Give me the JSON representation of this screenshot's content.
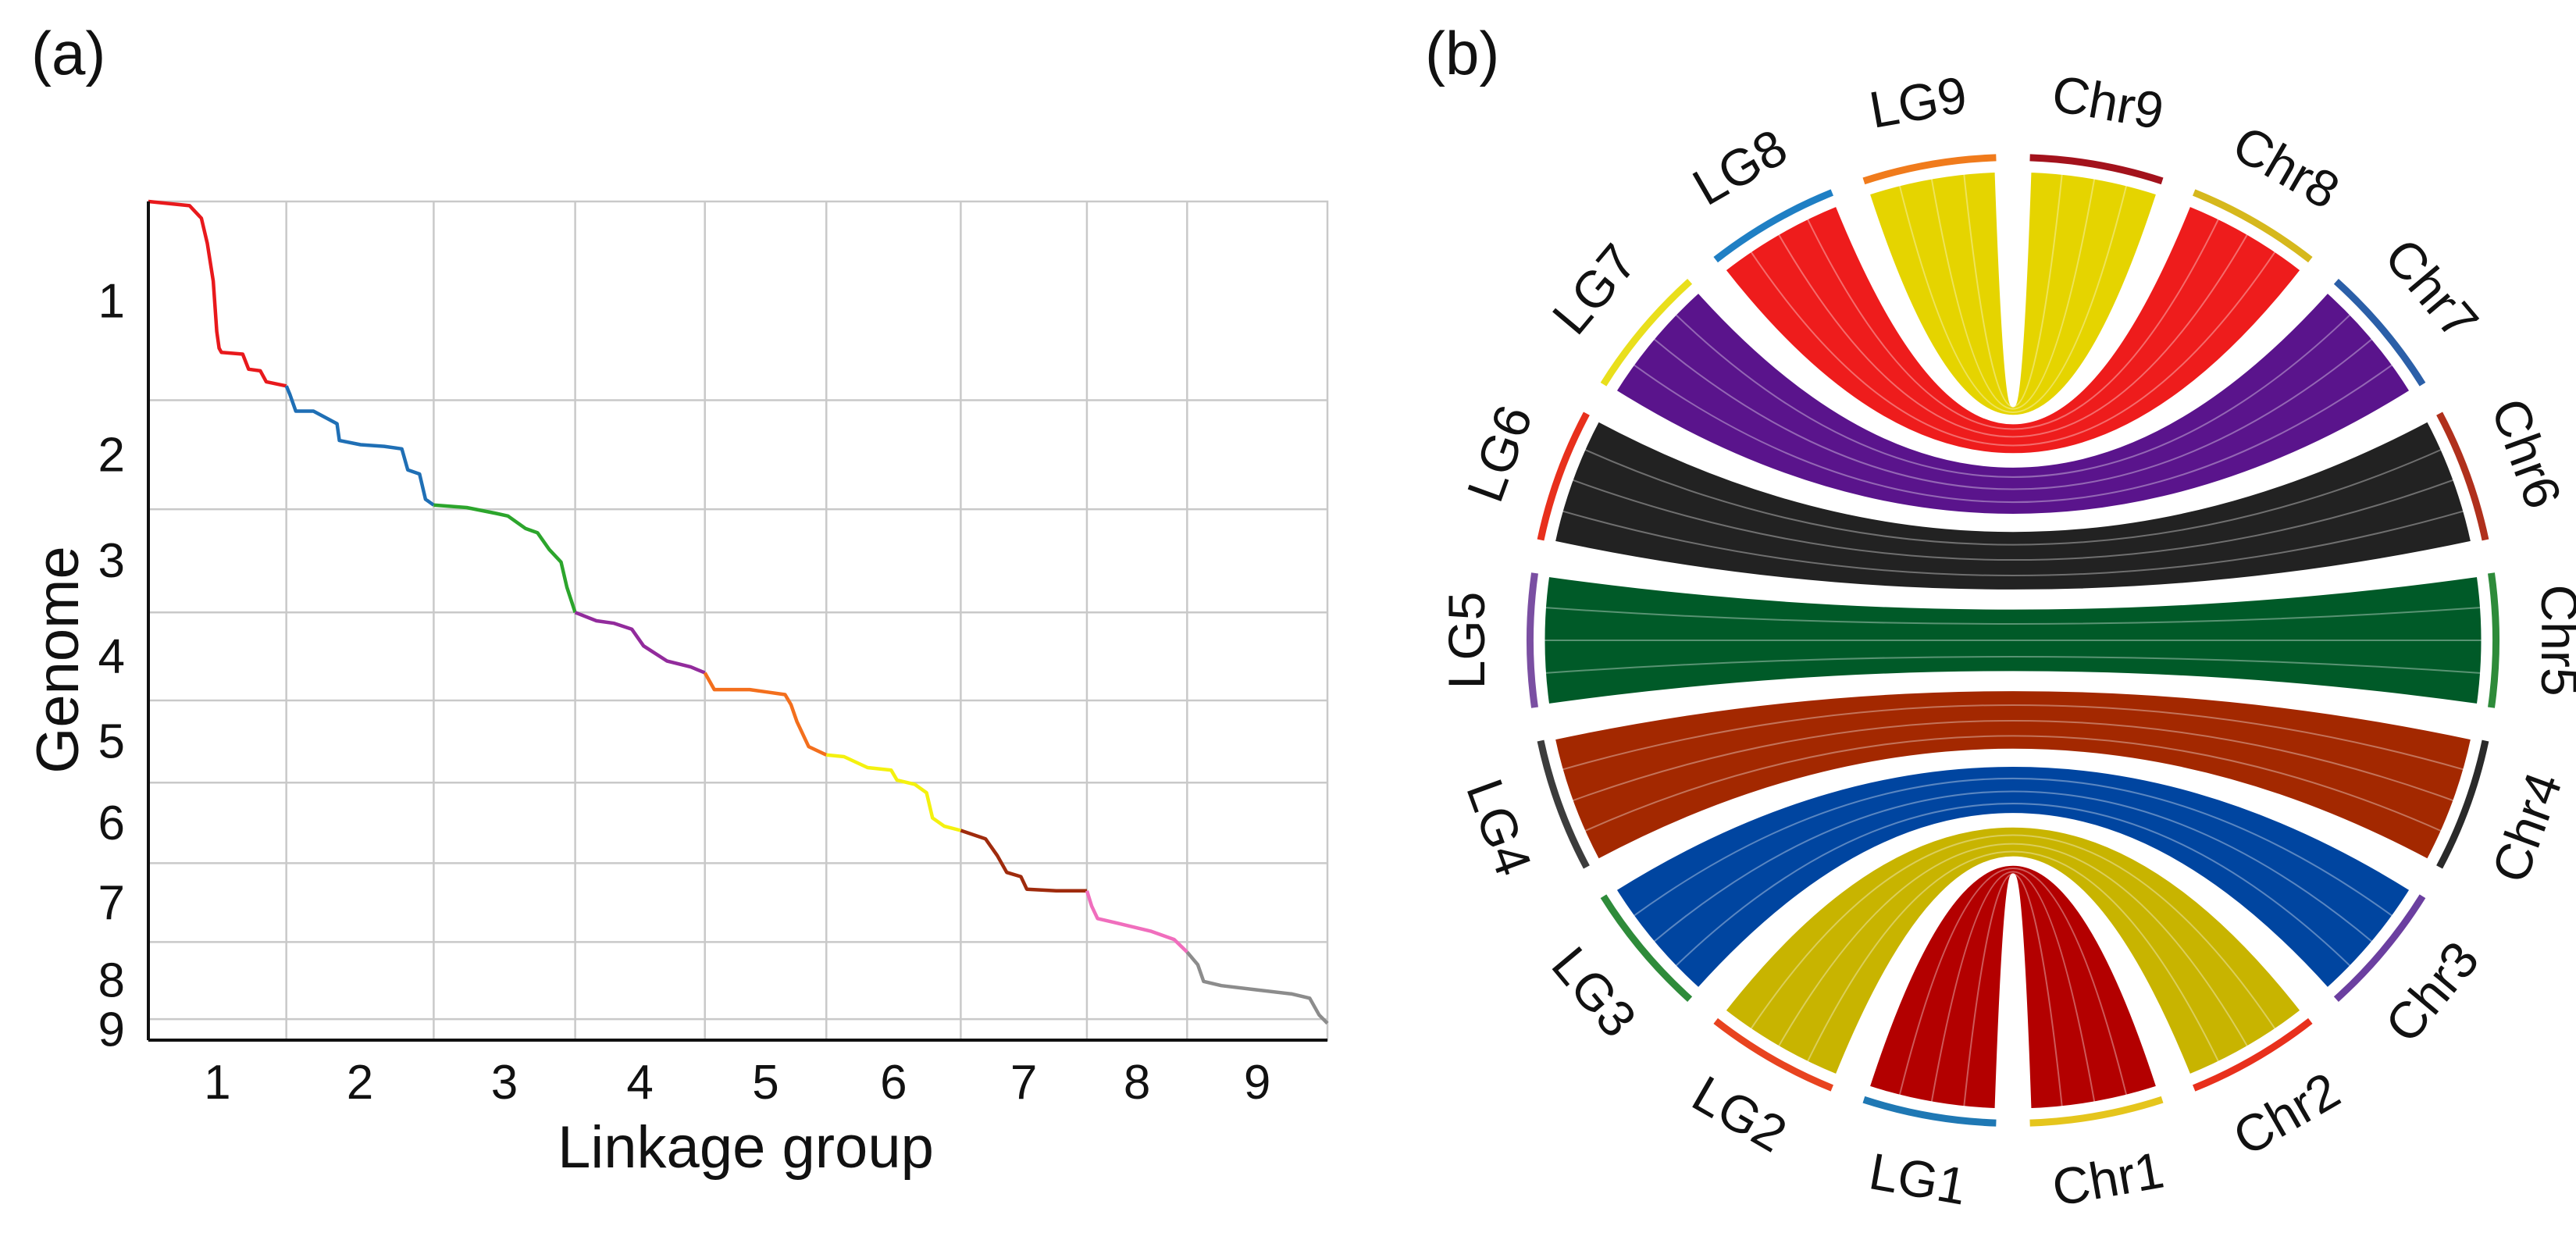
{
  "panel_a_label": "(a)",
  "panel_b_label": "(b)",
  "chart_data": [
    {
      "type": "line",
      "panel": "(a)",
      "title": "",
      "xlabel": "Linkage group",
      "ylabel": "Genome",
      "x_ticks": [
        "1",
        "2",
        "3",
        "4",
        "5",
        "6",
        "7",
        "8",
        "9"
      ],
      "y_ticks": [
        "1",
        "2",
        "3",
        "4",
        "5",
        "6",
        "7",
        "8",
        "9"
      ],
      "y_direction": "top-to-bottom",
      "grid": true,
      "x_boundaries": [
        0,
        1.17,
        2.42,
        3.62,
        4.72,
        5.75,
        6.89,
        7.96,
        8.81,
        10.0
      ],
      "y_boundaries": [
        0,
        2.37,
        3.67,
        4.9,
        5.95,
        6.93,
        7.89,
        8.83,
        9.75,
        10.0
      ],
      "series": [
        {
          "name": "1",
          "color": "#e8191c",
          "points": [
            [
              0.0,
              0.0
            ],
            [
              0.35,
              0.05
            ],
            [
              0.45,
              0.2
            ],
            [
              0.5,
              0.5
            ],
            [
              0.55,
              0.95
            ],
            [
              0.58,
              1.55
            ],
            [
              0.6,
              1.75
            ],
            [
              0.62,
              1.8
            ],
            [
              0.8,
              1.82
            ],
            [
              0.85,
              2.0
            ],
            [
              0.95,
              2.02
            ],
            [
              1.0,
              2.15
            ],
            [
              1.17,
              2.2
            ]
          ]
        },
        {
          "name": "2",
          "color": "#1f6fb5",
          "points": [
            [
              1.17,
              2.2
            ],
            [
              1.2,
              2.3
            ],
            [
              1.25,
              2.5
            ],
            [
              1.4,
              2.5
            ],
            [
              1.6,
              2.65
            ],
            [
              1.62,
              2.85
            ],
            [
              1.8,
              2.9
            ],
            [
              2.0,
              2.92
            ],
            [
              2.15,
              2.95
            ],
            [
              2.2,
              3.2
            ],
            [
              2.3,
              3.25
            ],
            [
              2.35,
              3.55
            ],
            [
              2.42,
              3.62
            ]
          ]
        },
        {
          "name": "3",
          "color": "#2ca52c",
          "points": [
            [
              2.42,
              3.62
            ],
            [
              2.7,
              3.65
            ],
            [
              2.95,
              3.72
            ],
            [
              3.05,
              3.75
            ],
            [
              3.2,
              3.9
            ],
            [
              3.3,
              3.95
            ],
            [
              3.4,
              4.15
            ],
            [
              3.5,
              4.3
            ],
            [
              3.55,
              4.6
            ],
            [
              3.62,
              4.9
            ]
          ]
        },
        {
          "name": "4",
          "color": "#922b9c",
          "points": [
            [
              3.62,
              4.9
            ],
            [
              3.8,
              5.0
            ],
            [
              3.95,
              5.03
            ],
            [
              4.1,
              5.1
            ],
            [
              4.2,
              5.3
            ],
            [
              4.4,
              5.48
            ],
            [
              4.6,
              5.55
            ],
            [
              4.72,
              5.62
            ]
          ]
        },
        {
          "name": "5",
          "color": "#f36f1d",
          "points": [
            [
              4.72,
              5.62
            ],
            [
              4.8,
              5.82
            ],
            [
              5.1,
              5.82
            ],
            [
              5.25,
              5.85
            ],
            [
              5.4,
              5.88
            ],
            [
              5.45,
              6.0
            ],
            [
              5.5,
              6.2
            ],
            [
              5.6,
              6.5
            ],
            [
              5.75,
              6.6
            ]
          ]
        },
        {
          "name": "6",
          "color": "#f4f10f",
          "points": [
            [
              5.75,
              6.6
            ],
            [
              5.9,
              6.62
            ],
            [
              6.1,
              6.75
            ],
            [
              6.3,
              6.78
            ],
            [
              6.35,
              6.9
            ],
            [
              6.5,
              6.95
            ],
            [
              6.6,
              7.05
            ],
            [
              6.65,
              7.35
            ],
            [
              6.75,
              7.45
            ],
            [
              6.89,
              7.5
            ]
          ]
        },
        {
          "name": "7",
          "color": "#9f2b0d",
          "points": [
            [
              6.89,
              7.5
            ],
            [
              7.1,
              7.6
            ],
            [
              7.2,
              7.8
            ],
            [
              7.28,
              8.0
            ],
            [
              7.4,
              8.05
            ],
            [
              7.45,
              8.2
            ],
            [
              7.7,
              8.22
            ],
            [
              7.96,
              8.22
            ]
          ]
        },
        {
          "name": "8",
          "color": "#f06ebd",
          "points": [
            [
              7.96,
              8.22
            ],
            [
              8.0,
              8.4
            ],
            [
              8.05,
              8.55
            ],
            [
              8.2,
              8.6
            ],
            [
              8.5,
              8.7
            ],
            [
              8.7,
              8.8
            ],
            [
              8.81,
              8.95
            ]
          ]
        },
        {
          "name": "9",
          "color": "#8c8c8c",
          "points": [
            [
              8.81,
              8.95
            ],
            [
              8.9,
              9.1
            ],
            [
              8.95,
              9.3
            ],
            [
              9.1,
              9.35
            ],
            [
              9.4,
              9.4
            ],
            [
              9.7,
              9.45
            ],
            [
              9.85,
              9.5
            ],
            [
              9.93,
              9.7
            ],
            [
              10.0,
              9.8
            ]
          ]
        }
      ]
    },
    {
      "type": "chord",
      "panel": "(b)",
      "title": "",
      "left_segments": [
        {
          "name": "LG1",
          "color": "#1f78b4"
        },
        {
          "name": "LG2",
          "color": "#e8431f"
        },
        {
          "name": "LG3",
          "color": "#2e8b3a"
        },
        {
          "name": "LG4",
          "color": "#3c3c3c"
        },
        {
          "name": "LG5",
          "color": "#7a4fa2"
        },
        {
          "name": "LG6",
          "color": "#e8301c"
        },
        {
          "name": "LG7",
          "color": "#e9df1c"
        },
        {
          "name": "LG8",
          "color": "#1f7fc4"
        },
        {
          "name": "LG9",
          "color": "#f07b1c"
        }
      ],
      "right_segments": [
        {
          "name": "Chr1",
          "color": "#e5c51c"
        },
        {
          "name": "Chr2",
          "color": "#e8301c"
        },
        {
          "name": "Chr3",
          "color": "#6b3fa0"
        },
        {
          "name": "Chr4",
          "color": "#2a2a2a"
        },
        {
          "name": "Chr5",
          "color": "#2e8b3a"
        },
        {
          "name": "Chr6",
          "color": "#b0301c"
        },
        {
          "name": "Chr7",
          "color": "#2b5fa8"
        },
        {
          "name": "Chr8",
          "color": "#d6b81c"
        },
        {
          "name": "Chr9",
          "color": "#a3121c"
        }
      ],
      "links": [
        {
          "from": "LG1",
          "to": "Chr1",
          "color": "#b30000"
        },
        {
          "from": "LG2",
          "to": "Chr2",
          "color": "#c8b400"
        },
        {
          "from": "LG3",
          "to": "Chr3",
          "color": "#0045a0"
        },
        {
          "from": "LG4",
          "to": "Chr4",
          "color": "#a32800"
        },
        {
          "from": "LG5",
          "to": "Chr5",
          "color": "#005a28"
        },
        {
          "from": "LG6",
          "to": "Chr6",
          "color": "#222222"
        },
        {
          "from": "LG7",
          "to": "Chr7",
          "color": "#5a148c"
        },
        {
          "from": "LG8",
          "to": "Chr8",
          "color": "#ee1c1c"
        },
        {
          "from": "LG9",
          "to": "Chr9",
          "color": "#e5d400"
        }
      ]
    }
  ]
}
